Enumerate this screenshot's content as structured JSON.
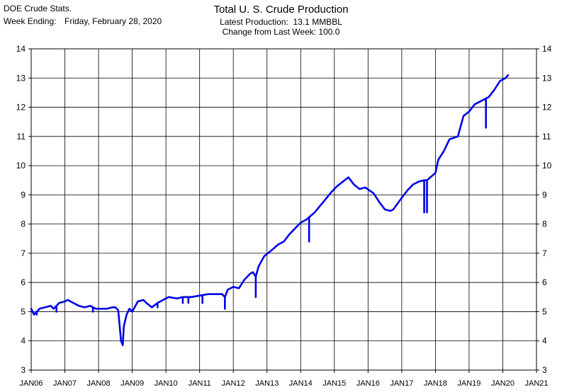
{
  "header": {
    "source": "DOE Crude Stats.",
    "week_label": "Week Ending:",
    "week_date": "Friday, February 28, 2020",
    "latest_line": "Latest Production:  13.1 MMBBL",
    "change_line": "Change from Last Week: 100.0"
  },
  "chart_data": {
    "type": "line",
    "title": "Total U. S. Crude Production",
    "xlabel": "",
    "ylabel": "",
    "ylim": [
      3,
      14
    ],
    "yticks": [
      3,
      4,
      5,
      6,
      7,
      8,
      9,
      10,
      11,
      12,
      13,
      14
    ],
    "xlim": [
      "2006-01",
      "2021-01"
    ],
    "xticks": [
      "JAN06",
      "JAN07",
      "JAN08",
      "JAN09",
      "JAN10",
      "JAN11",
      "JAN12",
      "JAN13",
      "JAN14",
      "JAN15",
      "JAN16",
      "JAN17",
      "JAN18",
      "JAN19",
      "JAN20",
      "JAN21"
    ],
    "grid": true,
    "line_color": "#0000e6",
    "series": [
      {
        "name": "",
        "points": [
          [
            "2006-01",
            5.1
          ],
          [
            "2006-02",
            4.9
          ],
          [
            "2006-04",
            5.1
          ],
          [
            "2006-06",
            5.15
          ],
          [
            "2006-08",
            5.2
          ],
          [
            "2006-09",
            5.1
          ],
          [
            "2006-11",
            5.3
          ],
          [
            "2007-01",
            5.35
          ],
          [
            "2007-02",
            5.4
          ],
          [
            "2007-04",
            5.3
          ],
          [
            "2007-06",
            5.2
          ],
          [
            "2007-08",
            5.15
          ],
          [
            "2007-10",
            5.2
          ],
          [
            "2007-12",
            5.1
          ],
          [
            "2008-02",
            5.1
          ],
          [
            "2008-04",
            5.1
          ],
          [
            "2008-06",
            5.15
          ],
          [
            "2008-07",
            5.15
          ],
          [
            "2008-08",
            5.05
          ],
          [
            "2008-09",
            4.0
          ],
          [
            "2008-09-20",
            3.85
          ],
          [
            "2008-10",
            4.5
          ],
          [
            "2008-11",
            4.9
          ],
          [
            "2008-12",
            5.1
          ],
          [
            "2009-01",
            5.0
          ],
          [
            "2009-03",
            5.35
          ],
          [
            "2009-05",
            5.4
          ],
          [
            "2009-06",
            5.3
          ],
          [
            "2009-08",
            5.15
          ],
          [
            "2009-10",
            5.3
          ],
          [
            "2009-12",
            5.4
          ],
          [
            "2010-02",
            5.5
          ],
          [
            "2010-05",
            5.45
          ],
          [
            "2010-07",
            5.5
          ],
          [
            "2010-10",
            5.5
          ],
          [
            "2011-01",
            5.55
          ],
          [
            "2011-04",
            5.6
          ],
          [
            "2011-07",
            5.6
          ],
          [
            "2011-09",
            5.6
          ],
          [
            "2011-10",
            5.5
          ],
          [
            "2011-11",
            5.75
          ],
          [
            "2012-01",
            5.85
          ],
          [
            "2012-03",
            5.8
          ],
          [
            "2012-05",
            6.1
          ],
          [
            "2012-07",
            6.3
          ],
          [
            "2012-08",
            6.35
          ],
          [
            "2012-09",
            6.2
          ],
          [
            "2012-10",
            6.55
          ],
          [
            "2012-12",
            6.9
          ],
          [
            "2013-02",
            7.05
          ],
          [
            "2013-05",
            7.3
          ],
          [
            "2013-07",
            7.4
          ],
          [
            "2013-09",
            7.65
          ],
          [
            "2013-11",
            7.85
          ],
          [
            "2014-01",
            8.05
          ],
          [
            "2014-03",
            8.15
          ],
          [
            "2014-06",
            8.4
          ],
          [
            "2014-09",
            8.75
          ],
          [
            "2014-12",
            9.1
          ],
          [
            "2015-02",
            9.3
          ],
          [
            "2015-04",
            9.45
          ],
          [
            "2015-06",
            9.6
          ],
          [
            "2015-08",
            9.35
          ],
          [
            "2015-10",
            9.2
          ],
          [
            "2015-12",
            9.25
          ],
          [
            "2016-03",
            9.05
          ],
          [
            "2016-05",
            8.75
          ],
          [
            "2016-07",
            8.5
          ],
          [
            "2016-09",
            8.45
          ],
          [
            "2016-10",
            8.5
          ],
          [
            "2017-01",
            8.9
          ],
          [
            "2017-03",
            9.15
          ],
          [
            "2017-05",
            9.35
          ],
          [
            "2017-07",
            9.45
          ],
          [
            "2017-09",
            9.5
          ],
          [
            "2017-10",
            9.5
          ],
          [
            "2018-01",
            9.75
          ],
          [
            "2018-02",
            10.2
          ],
          [
            "2018-04",
            10.5
          ],
          [
            "2018-06",
            10.9
          ],
          [
            "2018-09",
            11.0
          ],
          [
            "2018-11",
            11.7
          ],
          [
            "2019-01",
            11.85
          ],
          [
            "2019-03",
            12.1
          ],
          [
            "2019-05",
            12.2
          ],
          [
            "2019-07",
            12.3
          ],
          [
            "2019-08",
            12.35
          ],
          [
            "2019-10",
            12.6
          ],
          [
            "2019-12",
            12.9
          ],
          [
            "2020-02",
            13.0
          ],
          [
            "2020-02-28",
            13.1
          ]
        ]
      }
    ],
    "spikes": [
      [
        "2006-03",
        4.9
      ],
      [
        "2006-10",
        5.0
      ],
      [
        "2007-11",
        5.0
      ],
      [
        "2009-10",
        5.15
      ],
      [
        "2010-07",
        5.3
      ],
      [
        "2010-09",
        5.3
      ],
      [
        "2011-02",
        5.3
      ],
      [
        "2011-10",
        5.1
      ],
      [
        "2012-09",
        5.5
      ],
      [
        "2014-04",
        7.4
      ],
      [
        "2017-09",
        8.4
      ],
      [
        "2017-10",
        8.4
      ],
      [
        "2019-07",
        11.3
      ]
    ]
  }
}
